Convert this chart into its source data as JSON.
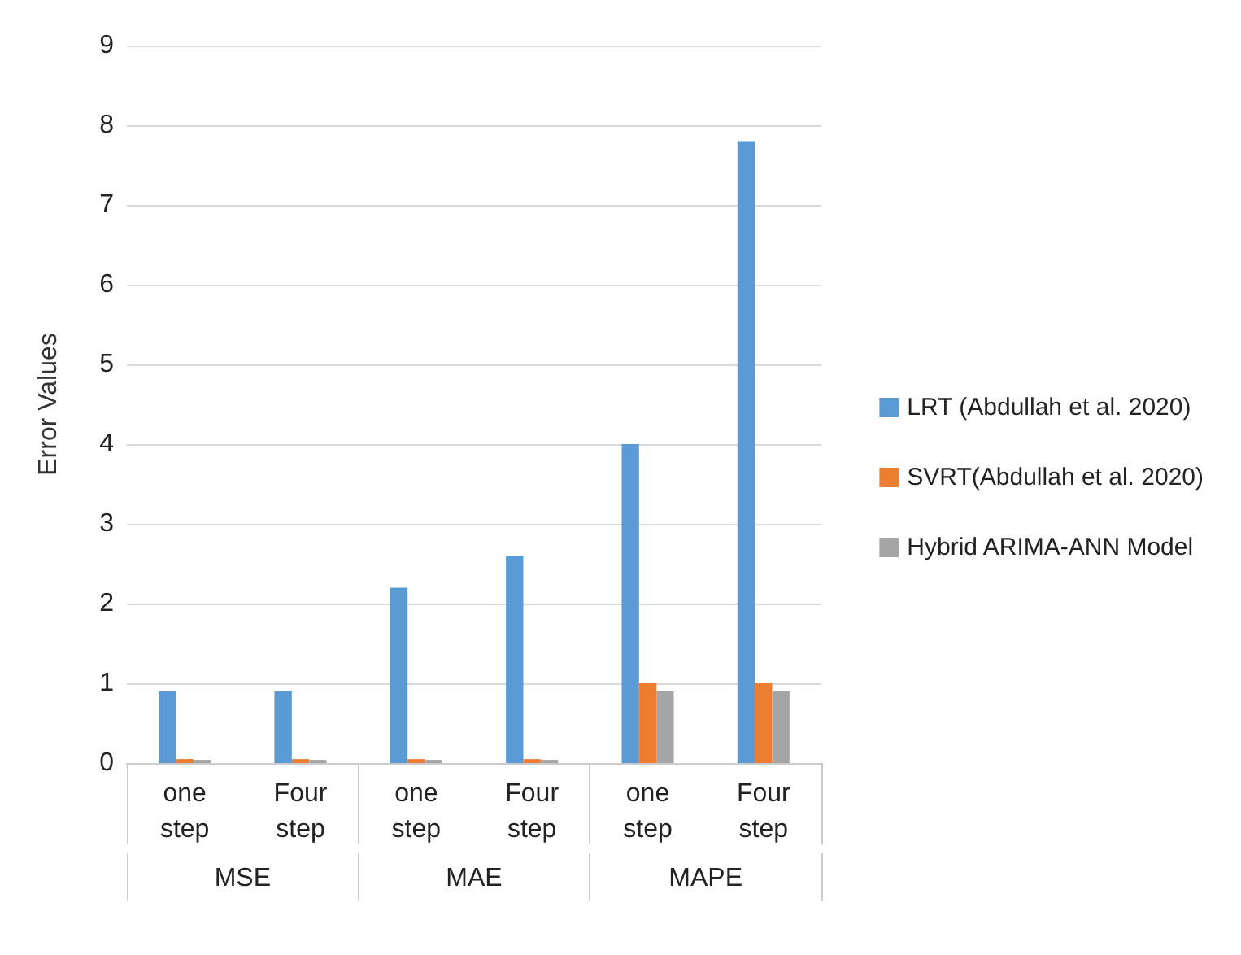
{
  "chart_data": {
    "type": "bar",
    "ylabel": "Error Values",
    "categories": [
      "one step",
      "Four step",
      "one step",
      "Four step",
      "one step",
      "Four step"
    ],
    "annotations": [
      "MSE",
      "MAE",
      "MAPE"
    ],
    "series": [
      {
        "name": "LRT (Abdullah et al. 2020)",
        "color": "#5b9bd5",
        "values": [
          0.9,
          0.9,
          2.2,
          2.6,
          4.0,
          7.8
        ]
      },
      {
        "name": "SVRT(Abdullah et al. 2020)",
        "color": "#ed7d31",
        "values": [
          0.05,
          0.05,
          0.05,
          0.05,
          1.0,
          1.0
        ]
      },
      {
        "name": "Hybrid ARIMA-ANN Model",
        "color": "#a5a5a5",
        "values": [
          0.04,
          0.04,
          0.04,
          0.04,
          0.9,
          0.9
        ]
      }
    ],
    "ylim": [
      0,
      9
    ],
    "yticks": [
      0,
      1,
      2,
      3,
      4,
      5,
      6,
      7,
      8,
      9
    ],
    "grid": "y",
    "legend": "right"
  }
}
